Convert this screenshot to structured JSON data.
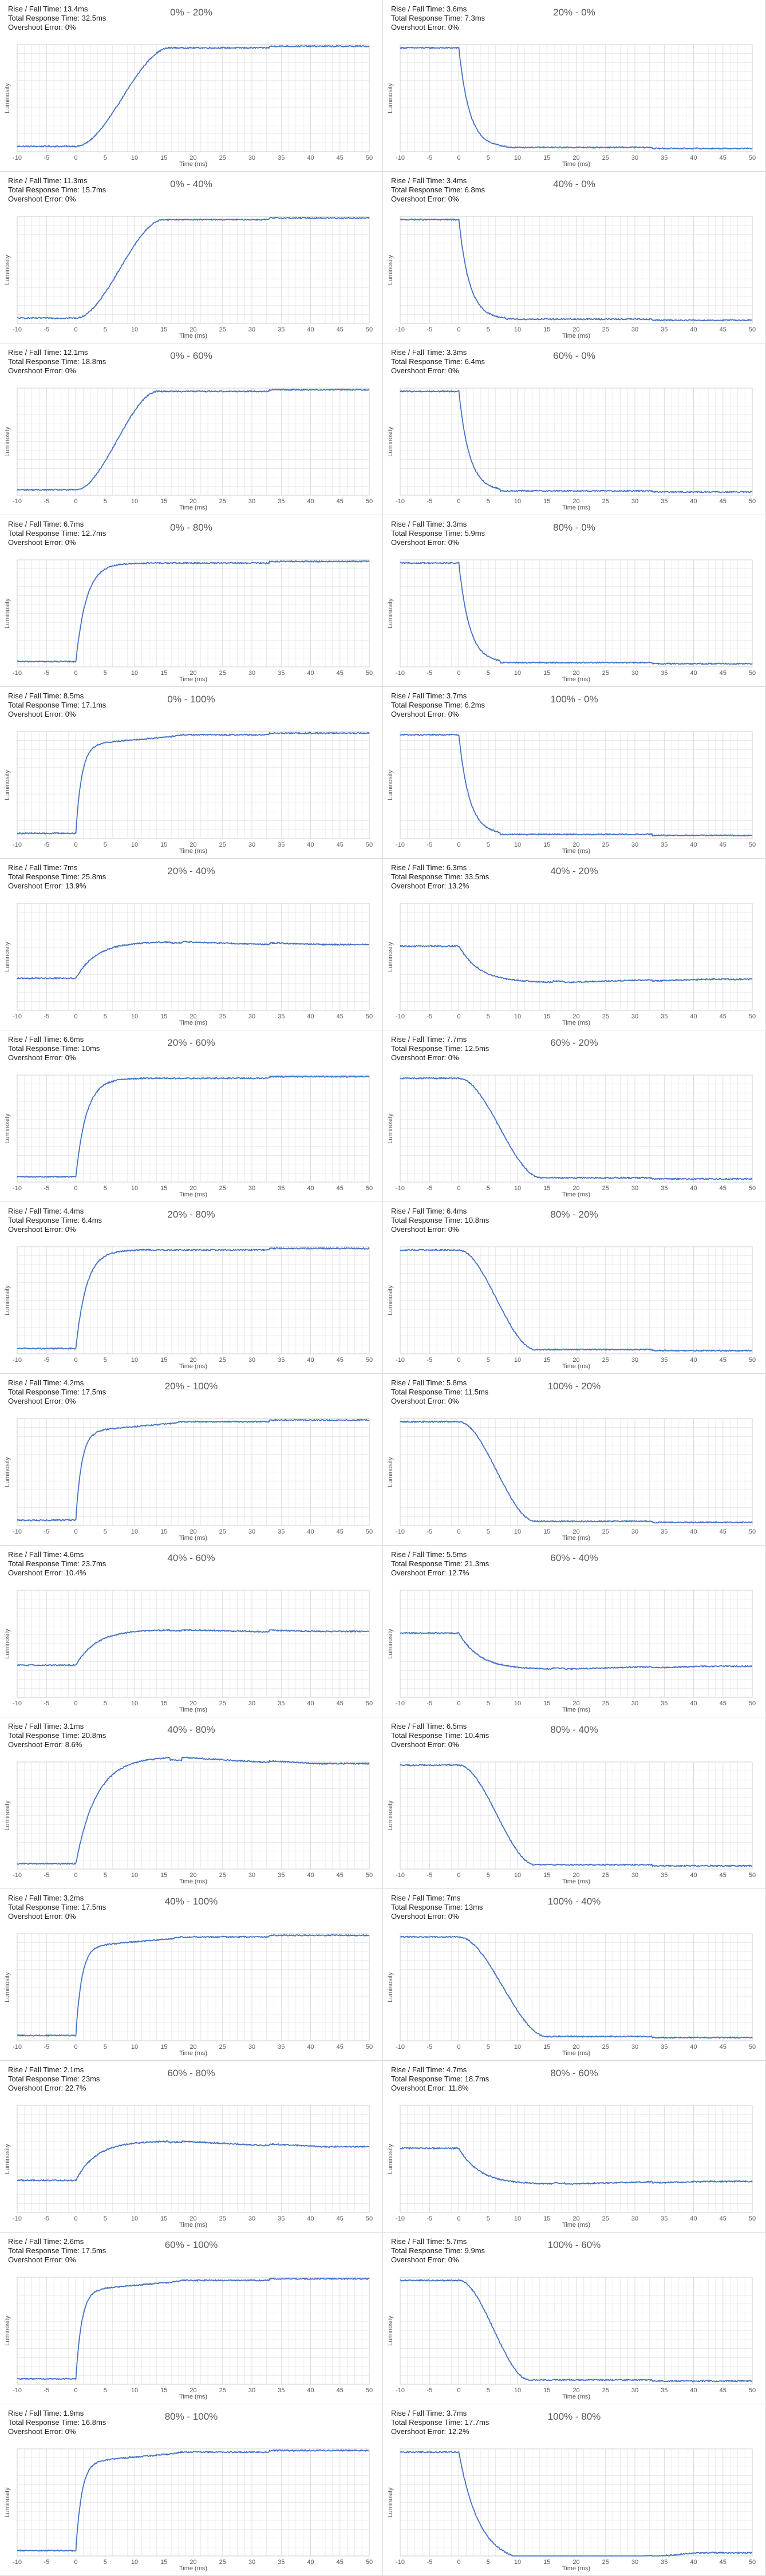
{
  "labels": {
    "rise_fall": "Rise / Fall Time:",
    "total": "Total Response Time:",
    "overshoot": "Overshoot Error:",
    "xlabel": "Time (ms)",
    "ylabel": "Luminosity"
  },
  "colors": {
    "line": "#4472c4",
    "grid": "#d9d9d9",
    "axis": "#595959"
  },
  "chart_data": [
    {
      "type": "line",
      "title": "0% - 20%",
      "rise_fall": "13.4ms",
      "total": "32.5ms",
      "overshoot": "0%",
      "dir": "rise",
      "start": 0.05,
      "end": 0.97,
      "t_start": 0,
      "t_end": 16,
      "curve": "slow",
      "xlim": [
        -10,
        50
      ],
      "xticks": [
        -10,
        -5,
        0,
        5,
        10,
        15,
        20,
        25,
        30,
        35,
        40,
        45,
        50
      ],
      "xlabel": "Time (ms)",
      "ylabel": "Luminosity"
    },
    {
      "type": "line",
      "title": "20% - 0%",
      "rise_fall": "3.6ms",
      "total": "7.3ms",
      "overshoot": "0%",
      "dir": "fall",
      "start": 0.97,
      "end": 0.04,
      "t_start": 0,
      "t_end": 8,
      "curve": "fast",
      "xlim": [
        -10,
        50
      ],
      "xticks": [
        -10,
        -5,
        0,
        5,
        10,
        15,
        20,
        25,
        30,
        35,
        40,
        45,
        50
      ],
      "xlabel": "Time (ms)",
      "ylabel": "Luminosity"
    },
    {
      "type": "line",
      "title": "0% - 40%",
      "rise_fall": "11.3ms",
      "total": "15.7ms",
      "overshoot": "0%",
      "dir": "rise",
      "start": 0.05,
      "end": 0.97,
      "t_start": 0,
      "t_end": 15,
      "curve": "slow",
      "xlim": [
        -10,
        50
      ],
      "xticks": [
        -10,
        -5,
        0,
        5,
        10,
        15,
        20,
        25,
        30,
        35,
        40,
        45,
        50
      ],
      "xlabel": "Time (ms)",
      "ylabel": "Luminosity"
    },
    {
      "type": "line",
      "title": "40% - 0%",
      "rise_fall": "3.4ms",
      "total": "6.8ms",
      "overshoot": "0%",
      "dir": "fall",
      "start": 0.97,
      "end": 0.04,
      "t_start": 0,
      "t_end": 8,
      "curve": "fast",
      "xlim": [
        -10,
        50
      ],
      "xticks": [
        -10,
        -5,
        0,
        5,
        10,
        15,
        20,
        25,
        30,
        35,
        40,
        45,
        50
      ],
      "xlabel": "Time (ms)",
      "ylabel": "Luminosity"
    },
    {
      "type": "line",
      "title": "0% - 60%",
      "rise_fall": "12.1ms",
      "total": "18.8ms",
      "overshoot": "0%",
      "dir": "rise",
      "start": 0.05,
      "end": 0.97,
      "t_start": 0,
      "t_end": 14,
      "curve": "slow",
      "xlim": [
        -10,
        50
      ],
      "xticks": [
        -10,
        -5,
        0,
        5,
        10,
        15,
        20,
        25,
        30,
        35,
        40,
        45,
        50
      ],
      "xlabel": "Time (ms)",
      "ylabel": "Luminosity"
    },
    {
      "type": "line",
      "title": "60% - 0%",
      "rise_fall": "3.3ms",
      "total": "6.4ms",
      "overshoot": "0%",
      "dir": "fall",
      "start": 0.97,
      "end": 0.04,
      "t_start": 0,
      "t_end": 7,
      "curve": "fast",
      "xlim": [
        -10,
        50
      ],
      "xticks": [
        -10,
        -5,
        0,
        5,
        10,
        15,
        20,
        25,
        30,
        35,
        40,
        45,
        50
      ],
      "xlabel": "Time (ms)",
      "ylabel": "Luminosity"
    },
    {
      "type": "line",
      "title": "0% - 80%",
      "rise_fall": "6.7ms",
      "total": "12.7ms",
      "overshoot": "0%",
      "dir": "rise",
      "start": 0.05,
      "end": 0.97,
      "t_start": 0,
      "t_end": 12,
      "curve": "fast",
      "xlim": [
        -10,
        50
      ],
      "xticks": [
        -10,
        -5,
        0,
        5,
        10,
        15,
        20,
        25,
        30,
        35,
        40,
        45,
        50
      ],
      "xlabel": "Time (ms)",
      "ylabel": "Luminosity"
    },
    {
      "type": "line",
      "title": "80% - 0%",
      "rise_fall": "3.3ms",
      "total": "5.9ms",
      "overshoot": "0%",
      "dir": "fall",
      "start": 0.97,
      "end": 0.04,
      "t_start": 0,
      "t_end": 7,
      "curve": "fast",
      "xlim": [
        -10,
        50
      ],
      "xticks": [
        -10,
        -5,
        0,
        5,
        10,
        15,
        20,
        25,
        30,
        35,
        40,
        45,
        50
      ],
      "xlabel": "Time (ms)",
      "ylabel": "Luminosity"
    },
    {
      "type": "line",
      "title": "0% - 100%",
      "rise_fall": "8.5ms",
      "total": "17.1ms",
      "overshoot": "0%",
      "dir": "rise",
      "start": 0.05,
      "end": 0.97,
      "t_start": 0,
      "t_end": 16,
      "curve": "step",
      "xlim": [
        -10,
        50
      ],
      "xticks": [
        -10,
        -5,
        0,
        5,
        10,
        15,
        20,
        25,
        30,
        35,
        40,
        45,
        50
      ],
      "xlabel": "Time (ms)",
      "ylabel": "Luminosity"
    },
    {
      "type": "line",
      "title": "100% - 0%",
      "rise_fall": "3.7ms",
      "total": "6.2ms",
      "overshoot": "0%",
      "dir": "fall",
      "start": 0.97,
      "end": 0.04,
      "t_start": 0,
      "t_end": 7,
      "curve": "fast",
      "xlim": [
        -10,
        50
      ],
      "xticks": [
        -10,
        -5,
        0,
        5,
        10,
        15,
        20,
        25,
        30,
        35,
        40,
        45,
        50
      ],
      "xlabel": "Time (ms)",
      "ylabel": "Luminosity"
    },
    {
      "type": "line",
      "title": "20% - 40%",
      "rise_fall": "7ms",
      "total": "25.8ms",
      "overshoot": "13.9%",
      "dir": "rise",
      "start": 0.3,
      "end": 0.6,
      "t_start": 0,
      "t_end": 17,
      "curve": "overshoot",
      "xlim": [
        -10,
        50
      ],
      "xticks": [
        -10,
        -5,
        0,
        5,
        10,
        15,
        20,
        25,
        30,
        35,
        40,
        45,
        50
      ],
      "xlabel": "Time (ms)",
      "ylabel": "Luminosity"
    },
    {
      "type": "line",
      "title": "40% - 20%",
      "rise_fall": "6.3ms",
      "total": "33.5ms",
      "overshoot": "13.2%",
      "dir": "fall",
      "start": 0.6,
      "end": 0.3,
      "t_start": 0,
      "t_end": 17,
      "curve": "overshoot",
      "xlim": [
        -10,
        50
      ],
      "xticks": [
        -10,
        -5,
        0,
        5,
        10,
        15,
        20,
        25,
        30,
        35,
        40,
        45,
        50
      ],
      "xlabel": "Time (ms)",
      "ylabel": "Luminosity"
    },
    {
      "type": "line",
      "title": "20% - 60%",
      "rise_fall": "6.6ms",
      "total": "10ms",
      "overshoot": "0%",
      "dir": "rise",
      "start": 0.05,
      "end": 0.97,
      "t_start": 0,
      "t_end": 12,
      "curve": "fast",
      "xlim": [
        -10,
        50
      ],
      "xticks": [
        -10,
        -5,
        0,
        5,
        10,
        15,
        20,
        25,
        30,
        35,
        40,
        45,
        50
      ],
      "xlabel": "Time (ms)",
      "ylabel": "Luminosity"
    },
    {
      "type": "line",
      "title": "60% - 20%",
      "rise_fall": "7.7ms",
      "total": "12.5ms",
      "overshoot": "0%",
      "dir": "fall",
      "start": 0.97,
      "end": 0.04,
      "t_start": 0,
      "t_end": 14,
      "curve": "slow",
      "xlim": [
        -10,
        50
      ],
      "xticks": [
        -10,
        -5,
        0,
        5,
        10,
        15,
        20,
        25,
        30,
        35,
        40,
        45,
        50
      ],
      "xlabel": "Time (ms)",
      "ylabel": "Luminosity"
    },
    {
      "type": "line",
      "title": "20% - 80%",
      "rise_fall": "4.4ms",
      "total": "6.4ms",
      "overshoot": "0%",
      "dir": "rise",
      "start": 0.05,
      "end": 0.97,
      "t_start": 0,
      "t_end": 10,
      "curve": "fast",
      "xlim": [
        -10,
        50
      ],
      "xticks": [
        -10,
        -5,
        0,
        5,
        10,
        15,
        20,
        25,
        30,
        35,
        40,
        45,
        50
      ],
      "xlabel": "Time (ms)",
      "ylabel": "Luminosity"
    },
    {
      "type": "line",
      "title": "80% - 20%",
      "rise_fall": "6.4ms",
      "total": "10.8ms",
      "overshoot": "0%",
      "dir": "fall",
      "start": 0.97,
      "end": 0.04,
      "t_start": 0,
      "t_end": 13,
      "curve": "slow",
      "xlim": [
        -10,
        50
      ],
      "xticks": [
        -10,
        -5,
        0,
        5,
        10,
        15,
        20,
        25,
        30,
        35,
        40,
        45,
        50
      ],
      "xlabel": "Time (ms)",
      "ylabel": "Luminosity"
    },
    {
      "type": "line",
      "title": "20% - 100%",
      "rise_fall": "4.2ms",
      "total": "17.5ms",
      "overshoot": "0%",
      "dir": "rise",
      "start": 0.05,
      "end": 0.97,
      "t_start": 0,
      "t_end": 16,
      "curve": "step",
      "xlim": [
        -10,
        50
      ],
      "xticks": [
        -10,
        -5,
        0,
        5,
        10,
        15,
        20,
        25,
        30,
        35,
        40,
        45,
        50
      ],
      "xlabel": "Time (ms)",
      "ylabel": "Luminosity"
    },
    {
      "type": "line",
      "title": "100% - 20%",
      "rise_fall": "5.8ms",
      "total": "11.5ms",
      "overshoot": "0%",
      "dir": "fall",
      "start": 0.97,
      "end": 0.04,
      "t_start": 0,
      "t_end": 13,
      "curve": "slow",
      "xlim": [
        -10,
        50
      ],
      "xticks": [
        -10,
        -5,
        0,
        5,
        10,
        15,
        20,
        25,
        30,
        35,
        40,
        45,
        50
      ],
      "xlabel": "Time (ms)",
      "ylabel": "Luminosity"
    },
    {
      "type": "line",
      "title": "40% - 60%",
      "rise_fall": "4.6ms",
      "total": "23.7ms",
      "overshoot": "10.4%",
      "dir": "rise",
      "start": 0.3,
      "end": 0.6,
      "t_start": 0,
      "t_end": 17,
      "curve": "overshoot",
      "xlim": [
        -10,
        50
      ],
      "xticks": [
        -10,
        -5,
        0,
        5,
        10,
        15,
        20,
        25,
        30,
        35,
        40,
        45,
        50
      ],
      "xlabel": "Time (ms)",
      "ylabel": "Luminosity"
    },
    {
      "type": "line",
      "title": "60% - 40%",
      "rise_fall": "5.5ms",
      "total": "21.3ms",
      "overshoot": "12.7%",
      "dir": "fall",
      "start": 0.6,
      "end": 0.3,
      "t_start": 0,
      "t_end": 17,
      "curve": "overshoot",
      "xlim": [
        -10,
        50
      ],
      "xticks": [
        -10,
        -5,
        0,
        5,
        10,
        15,
        20,
        25,
        30,
        35,
        40,
        45,
        50
      ],
      "xlabel": "Time (ms)",
      "ylabel": "Luminosity"
    },
    {
      "type": "line",
      "title": "40% - 80%",
      "rise_fall": "3.1ms",
      "total": "20.8ms",
      "overshoot": "8.6%",
      "dir": "rise",
      "start": 0.05,
      "end": 0.97,
      "t_start": 0,
      "t_end": 16,
      "curve": "overshoot",
      "xlim": [
        -10,
        50
      ],
      "xticks": [
        -10,
        -5,
        0,
        5,
        10,
        15,
        20,
        25,
        30,
        35,
        40,
        45,
        50
      ],
      "xlabel": "Time (ms)",
      "ylabel": "Luminosity"
    },
    {
      "type": "line",
      "title": "80% - 40%",
      "rise_fall": "6.5ms",
      "total": "10.4ms",
      "overshoot": "0%",
      "dir": "fall",
      "start": 0.97,
      "end": 0.04,
      "t_start": 0,
      "t_end": 13,
      "curve": "slow",
      "xlim": [
        -10,
        50
      ],
      "xticks": [
        -10,
        -5,
        0,
        5,
        10,
        15,
        20,
        25,
        30,
        35,
        40,
        45,
        50
      ],
      "xlabel": "Time (ms)",
      "ylabel": "Luminosity"
    },
    {
      "type": "line",
      "title": "40% - 100%",
      "rise_fall": "3.2ms",
      "total": "17.5ms",
      "overshoot": "0%",
      "dir": "rise",
      "start": 0.05,
      "end": 0.97,
      "t_start": 0,
      "t_end": 16,
      "curve": "step",
      "xlim": [
        -10,
        50
      ],
      "xticks": [
        -10,
        -5,
        0,
        5,
        10,
        15,
        20,
        25,
        30,
        35,
        40,
        45,
        50
      ],
      "xlabel": "Time (ms)",
      "ylabel": "Luminosity"
    },
    {
      "type": "line",
      "title": "100% - 40%",
      "rise_fall": "7ms",
      "total": "13ms",
      "overshoot": "0%",
      "dir": "fall",
      "start": 0.97,
      "end": 0.04,
      "t_start": 0,
      "t_end": 15,
      "curve": "slow",
      "xlim": [
        -10,
        50
      ],
      "xticks": [
        -10,
        -5,
        0,
        5,
        10,
        15,
        20,
        25,
        30,
        35,
        40,
        45,
        50
      ],
      "xlabel": "Time (ms)",
      "ylabel": "Luminosity"
    },
    {
      "type": "line",
      "title": "60% - 80%",
      "rise_fall": "2.1ms",
      "total": "23ms",
      "overshoot": "22.7%",
      "dir": "rise",
      "start": 0.3,
      "end": 0.6,
      "t_start": 0,
      "t_end": 17,
      "curve": "overshoot",
      "xlim": [
        -10,
        50
      ],
      "xticks": [
        -10,
        -5,
        0,
        5,
        10,
        15,
        20,
        25,
        30,
        35,
        40,
        45,
        50
      ],
      "xlabel": "Time (ms)",
      "ylabel": "Luminosity"
    },
    {
      "type": "line",
      "title": "80% - 60%",
      "rise_fall": "4.7ms",
      "total": "18.7ms",
      "overshoot": "11.8%",
      "dir": "fall",
      "start": 0.6,
      "end": 0.3,
      "t_start": 0,
      "t_end": 17,
      "curve": "overshoot",
      "xlim": [
        -10,
        50
      ],
      "xticks": [
        -10,
        -5,
        0,
        5,
        10,
        15,
        20,
        25,
        30,
        35,
        40,
        45,
        50
      ],
      "xlabel": "Time (ms)",
      "ylabel": "Luminosity"
    },
    {
      "type": "line",
      "title": "60% - 100%",
      "rise_fall": "2.6ms",
      "total": "17.5ms",
      "overshoot": "0%",
      "dir": "rise",
      "start": 0.05,
      "end": 0.97,
      "t_start": 0,
      "t_end": 16,
      "curve": "step",
      "xlim": [
        -10,
        50
      ],
      "xticks": [
        -10,
        -5,
        0,
        5,
        10,
        15,
        20,
        25,
        30,
        35,
        40,
        45,
        50
      ],
      "xlabel": "Time (ms)",
      "ylabel": "Luminosity"
    },
    {
      "type": "line",
      "title": "100% - 60%",
      "rise_fall": "5.7ms",
      "total": "9.9ms",
      "overshoot": "0%",
      "dir": "fall",
      "start": 0.97,
      "end": 0.04,
      "t_start": 0,
      "t_end": 12,
      "curve": "slow",
      "xlim": [
        -10,
        50
      ],
      "xticks": [
        -10,
        -5,
        0,
        5,
        10,
        15,
        20,
        25,
        30,
        35,
        40,
        45,
        50
      ],
      "xlabel": "Time (ms)",
      "ylabel": "Luminosity"
    },
    {
      "type": "line",
      "title": "80% - 100%",
      "rise_fall": "1.9ms",
      "total": "16.8ms",
      "overshoot": "0%",
      "dir": "rise",
      "start": 0.05,
      "end": 0.97,
      "t_start": 0,
      "t_end": 16,
      "curve": "step",
      "xlim": [
        -10,
        50
      ],
      "xticks": [
        -10,
        -5,
        0,
        5,
        10,
        15,
        20,
        25,
        30,
        35,
        40,
        45,
        50
      ],
      "xlabel": "Time (ms)",
      "ylabel": "Luminosity"
    },
    {
      "type": "line",
      "title": "100% - 80%",
      "rise_fall": "3.7ms",
      "total": "17.7ms",
      "overshoot": "12.2%",
      "dir": "fall",
      "start": 0.97,
      "end": 0.04,
      "t_start": 0,
      "t_end": 16,
      "curve": "overshoot",
      "xlim": [
        -10,
        50
      ],
      "xticks": [
        -10,
        -5,
        0,
        5,
        10,
        15,
        20,
        25,
        30,
        35,
        40,
        45,
        50
      ],
      "xlabel": "Time (ms)",
      "ylabel": "Luminosity"
    }
  ]
}
